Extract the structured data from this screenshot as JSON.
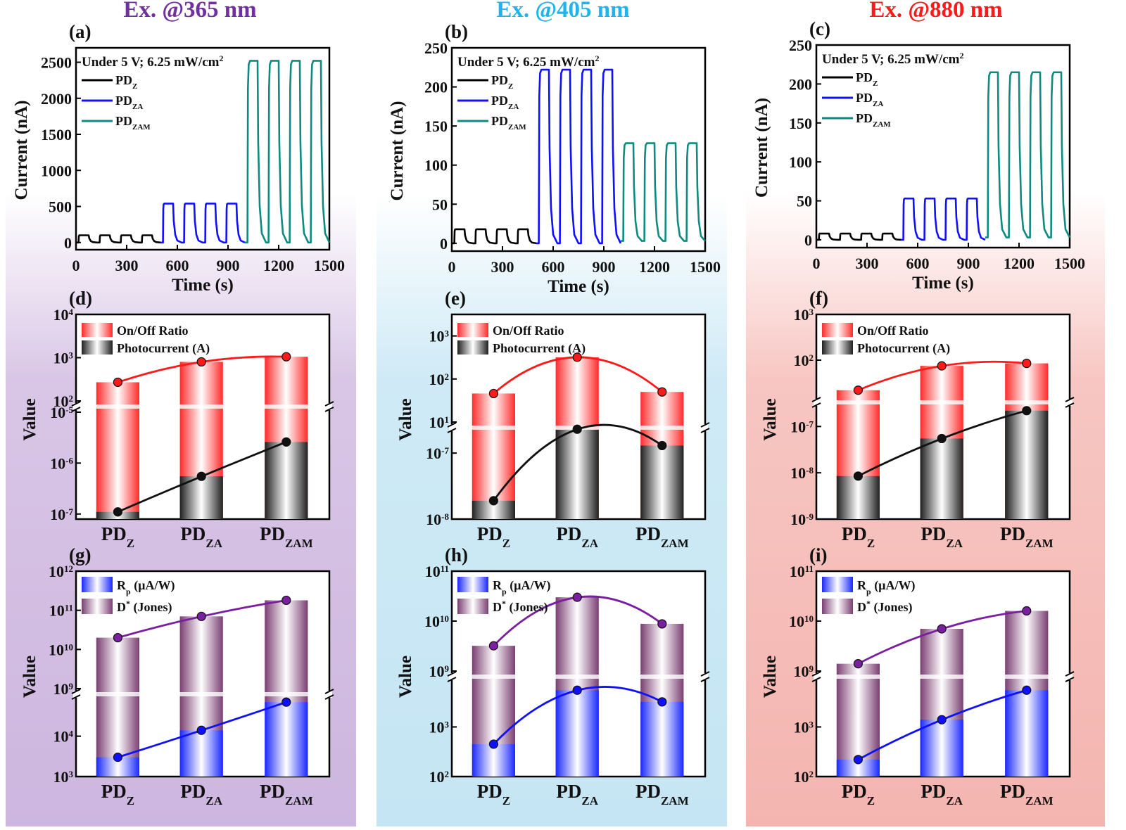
{
  "columns": [
    {
      "title": "Ex. @365 nm",
      "color": "#7030a0",
      "tint": "#d9c6e6"
    },
    {
      "title": "Ex. @405 nm",
      "color": "#1fb5ea",
      "tint": "#cfeaf6"
    },
    {
      "title": "Ex. @880 nm",
      "color": "#ff1a1a",
      "tint": "#f7c6c2"
    }
  ],
  "series_colors": {
    "PDZ": "#000000",
    "PDZA": "#1010ff",
    "PDZAM": "#0f8a80"
  },
  "top_panels": [
    {
      "label": "(a)",
      "note_main": "Under 5 V; 6.25 mW/cm",
      "note_sup": "2",
      "ylabel": "Current (nA)",
      "xlabel": "Time (s)",
      "yticks": [
        "0",
        "500",
        "1000",
        "1500",
        "2000",
        "2500"
      ],
      "xticks": [
        "0",
        "300",
        "600",
        "900",
        "1200",
        "1500"
      ],
      "legend": [
        {
          "base": "PD",
          "sub": "Z"
        },
        {
          "base": "PD",
          "sub": "ZA"
        },
        {
          "base": "PD",
          "sub": "ZAM"
        }
      ]
    },
    {
      "label": "(b)",
      "note_main": "Under 5 V; 6.25 mW/cm",
      "note_sup": "2",
      "ylabel": "Current (nA)",
      "xlabel": "Time (s)",
      "yticks": [
        "0",
        "50",
        "100",
        "150",
        "200",
        "250"
      ],
      "xticks": [
        "0",
        "300",
        "600",
        "900",
        "1200",
        "1500"
      ],
      "legend": [
        {
          "base": "PD",
          "sub": "Z"
        },
        {
          "base": "PD",
          "sub": "ZA"
        },
        {
          "base": "PD",
          "sub": "ZAM"
        }
      ]
    },
    {
      "label": "(c)",
      "note_main": "Under 5 V; 6.25 mW/cm",
      "note_sup": "2",
      "ylabel": "Current (nA)",
      "xlabel": "Time (s)",
      "yticks": [
        "0",
        "50",
        "100",
        "150",
        "200",
        "250"
      ],
      "xticks": [
        "0",
        "300",
        "600",
        "900",
        "1200",
        "1500"
      ],
      "legend": [
        {
          "base": "PD",
          "sub": "Z"
        },
        {
          "base": "PD",
          "sub": "ZA"
        },
        {
          "base": "PD",
          "sub": "ZAM"
        }
      ]
    }
  ],
  "mid_panels": [
    {
      "label": "(d)",
      "ylabel": "Value",
      "legend": [
        "On/Off Ratio",
        "Photocurrent (A)"
      ],
      "upper_ticks": [
        {
          "m": "10",
          "e": "2"
        },
        {
          "m": "10",
          "e": "3"
        },
        {
          "m": "10",
          "e": "4"
        }
      ],
      "lower_ticks": [
        {
          "m": "10",
          "e": "-7"
        },
        {
          "m": "10",
          "e": "-6"
        },
        {
          "m": "10",
          "e": "-5"
        }
      ],
      "categories": [
        {
          "base": "PD",
          "sub": "Z"
        },
        {
          "base": "PD",
          "sub": "ZA"
        },
        {
          "base": "PD",
          "sub": "ZAM"
        }
      ]
    },
    {
      "label": "(e)",
      "ylabel": "Value",
      "legend": [
        "On/Off Ratio",
        "Photocurrent (A)"
      ],
      "upper_ticks": [
        {
          "m": "10",
          "e": "1"
        },
        {
          "m": "10",
          "e": "2"
        },
        {
          "m": "10",
          "e": "3"
        }
      ],
      "lower_ticks": [
        {
          "m": "10",
          "e": "-8"
        },
        {
          "m": "10",
          "e": "-7"
        }
      ],
      "categories": [
        {
          "base": "PD",
          "sub": "Z"
        },
        {
          "base": "PD",
          "sub": "ZA"
        },
        {
          "base": "PD",
          "sub": "ZAM"
        }
      ]
    },
    {
      "label": "(f)",
      "ylabel": "Value",
      "legend": [
        "On/Off Ratio",
        "Photocurrent (A)"
      ],
      "upper_ticks": [
        {
          "m": "10",
          "e": "2"
        },
        {
          "m": "10",
          "e": "3"
        }
      ],
      "lower_ticks": [
        {
          "m": "10",
          "e": "-9"
        },
        {
          "m": "10",
          "e": "-8"
        },
        {
          "m": "10",
          "e": "-7"
        }
      ],
      "categories": [
        {
          "base": "PD",
          "sub": "Z"
        },
        {
          "base": "PD",
          "sub": "ZA"
        },
        {
          "base": "PD",
          "sub": "ZAM"
        }
      ]
    }
  ],
  "bot_panels": [
    {
      "label": "(g)",
      "ylabel": "Value",
      "legend": [
        {
          "base": "R",
          "sub": "p",
          "rest": " (µA/W)"
        },
        {
          "base": "D",
          "sup": "*",
          "rest": " (Jones)"
        }
      ],
      "upper_ticks": [
        {
          "m": "10",
          "e": "9"
        },
        {
          "m": "10",
          "e": "10"
        },
        {
          "m": "10",
          "e": "11"
        },
        {
          "m": "10",
          "e": "12"
        }
      ],
      "lower_ticks": [
        {
          "m": "10",
          "e": "3"
        },
        {
          "m": "10",
          "e": "4"
        }
      ],
      "categories": [
        {
          "base": "PD",
          "sub": "Z"
        },
        {
          "base": "PD",
          "sub": "ZA"
        },
        {
          "base": "PD",
          "sub": "ZAM"
        }
      ]
    },
    {
      "label": "(h)",
      "ylabel": "Value",
      "legend": [
        {
          "base": "R",
          "sub": "p",
          "rest": " (µA/W)"
        },
        {
          "base": "D",
          "sup": "*",
          "rest": " (Jones)"
        }
      ],
      "upper_ticks": [
        {
          "m": "10",
          "e": "9"
        },
        {
          "m": "10",
          "e": "10"
        },
        {
          "m": "10",
          "e": "11"
        }
      ],
      "lower_ticks": [
        {
          "m": "10",
          "e": "2"
        },
        {
          "m": "10",
          "e": "3"
        }
      ],
      "categories": [
        {
          "base": "PD",
          "sub": "Z"
        },
        {
          "base": "PD",
          "sub": "ZA"
        },
        {
          "base": "PD",
          "sub": "ZAM"
        }
      ]
    },
    {
      "label": "(i)",
      "ylabel": "Value",
      "legend": [
        {
          "base": "R",
          "sub": "p",
          "rest": " (µA/W)"
        },
        {
          "base": "D",
          "sup": "*",
          "rest": " (Jones)"
        }
      ],
      "upper_ticks": [
        {
          "m": "10",
          "e": "9"
        },
        {
          "m": "10",
          "e": "10"
        },
        {
          "m": "10",
          "e": "11"
        }
      ],
      "lower_ticks": [
        {
          "m": "10",
          "e": "2"
        },
        {
          "m": "10",
          "e": "3"
        }
      ],
      "categories": [
        {
          "base": "PD",
          "sub": "Z"
        },
        {
          "base": "PD",
          "sub": "ZA"
        },
        {
          "base": "PD",
          "sub": "ZAM"
        }
      ]
    }
  ],
  "chart_data": [
    {
      "panel": "(a)",
      "type": "line",
      "xlabel": "Time (s)",
      "ylabel": "Current (nA)",
      "xlim": [
        0,
        1500
      ],
      "ylim": [
        -100,
        2700
      ],
      "cycles_per_series": 4,
      "series": [
        {
          "name": "PDZ",
          "t_start": 0,
          "t_end": 500,
          "on": 100,
          "off": 0
        },
        {
          "name": "PDZA",
          "t_start": 500,
          "t_end": 1000,
          "on": 540,
          "off": 0
        },
        {
          "name": "PDZAM",
          "t_start": 1000,
          "t_end": 1500,
          "on": 2520,
          "off": 0
        }
      ]
    },
    {
      "panel": "(b)",
      "type": "line",
      "xlabel": "Time (s)",
      "ylabel": "Current (nA)",
      "xlim": [
        0,
        1500
      ],
      "ylim": [
        -10,
        250
      ],
      "cycles_per_series": 4,
      "series": [
        {
          "name": "PDZ",
          "t_start": 0,
          "t_end": 500,
          "on": 18,
          "off": 0
        },
        {
          "name": "PDZA",
          "t_start": 500,
          "t_end": 1000,
          "on": 222,
          "off": 0
        },
        {
          "name": "PDZAM",
          "t_start": 1000,
          "t_end": 1500,
          "on": 128,
          "off": 3
        }
      ]
    },
    {
      "panel": "(c)",
      "type": "line",
      "xlabel": "Time (s)",
      "ylabel": "Current (nA)",
      "xlim": [
        0,
        1500
      ],
      "ylim": [
        -10,
        250
      ],
      "cycles_per_series": 4,
      "series": [
        {
          "name": "PDZ",
          "t_start": 0,
          "t_end": 500,
          "on": 8,
          "off": 0
        },
        {
          "name": "PDZA",
          "t_start": 500,
          "t_end": 1000,
          "on": 53,
          "off": 0
        },
        {
          "name": "PDZAM",
          "t_start": 1000,
          "t_end": 1500,
          "on": 215,
          "off": 3
        }
      ]
    },
    {
      "panel": "(d)",
      "type": "bar",
      "categories": [
        "PDZ",
        "PDZA",
        "PDZAM"
      ],
      "upper": {
        "name": "On/Off Ratio",
        "log_range": [
          2,
          4
        ],
        "values": [
          270,
          800,
          1050
        ]
      },
      "lower": {
        "name": "Photocurrent (A)",
        "log_range": [
          -7.1,
          -5
        ],
        "values": [
          1.1e-07,
          5.5e-07,
          2.6e-06
        ]
      }
    },
    {
      "panel": "(e)",
      "type": "bar",
      "categories": [
        "PDZ",
        "PDZA",
        "PDZAM"
      ],
      "upper": {
        "name": "On/Off Ratio",
        "log_range": [
          1,
          3.5
        ],
        "values": [
          46,
          320,
          50
        ]
      },
      "lower": {
        "name": "Photocurrent (A)",
        "log_range": [
          -8,
          -6.7
        ],
        "values": [
          1.9e-08,
          2.3e-07,
          1.3e-07
        ]
      }
    },
    {
      "panel": "(f)",
      "type": "bar",
      "categories": [
        "PDZ",
        "PDZA",
        "PDZAM"
      ],
      "upper": {
        "name": "On/Off Ratio",
        "log_range": [
          1.2,
          3
        ],
        "values": [
          22,
          75,
          85
        ]
      },
      "lower": {
        "name": "Photocurrent (A)",
        "log_range": [
          -9,
          -6.6
        ],
        "values": [
          8.5e-09,
          5.5e-08,
          2.2e-07
        ]
      }
    },
    {
      "panel": "(g)",
      "type": "bar",
      "categories": [
        "PDZ",
        "PDZA",
        "PDZAM"
      ],
      "upper": {
        "name": "D* (Jones)",
        "log_range": [
          9,
          12
        ],
        "values": [
          20000000000.0,
          70000000000.0,
          180000000000.0
        ]
      },
      "lower": {
        "name": "Rp (µA/W)",
        "log_range": [
          3,
          4.9
        ],
        "values": [
          3000,
          14000,
          70000
        ]
      }
    },
    {
      "panel": "(h)",
      "type": "bar",
      "categories": [
        "PDZ",
        "PDZA",
        "PDZAM"
      ],
      "upper": {
        "name": "D* (Jones)",
        "log_range": [
          9,
          11
        ],
        "values": [
          3200000000.0,
          30000000000.0,
          8800000000.0
        ]
      },
      "lower": {
        "name": "Rp (µA/W)",
        "log_range": [
          2,
          3.9
        ],
        "values": [
          450,
          5500,
          3200
        ]
      }
    },
    {
      "panel": "(i)",
      "type": "bar",
      "categories": [
        "PDZ",
        "PDZA",
        "PDZAM"
      ],
      "upper": {
        "name": "D* (Jones)",
        "log_range": [
          9,
          11
        ],
        "values": [
          1400000000.0,
          7000000000.0,
          16000000000.0
        ]
      },
      "lower": {
        "name": "Rp (µA/W)",
        "log_range": [
          2,
          3.9
        ],
        "values": [
          220,
          1400,
          5500
        ]
      }
    }
  ]
}
